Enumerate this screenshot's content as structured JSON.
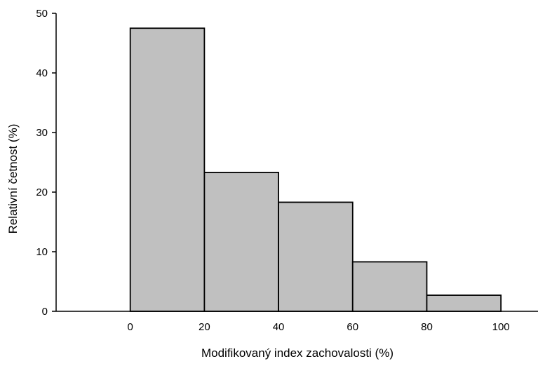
{
  "chart_data": {
    "type": "bar",
    "histogram": true,
    "title": "",
    "xlabel": "Modifikovaný index zachovalosti (%)",
    "ylabel": "Relativní četnost (%)",
    "bins": [
      {
        "x_start": 0,
        "x_end": 20,
        "value": 47.5
      },
      {
        "x_start": 20,
        "x_end": 40,
        "value": 23.3
      },
      {
        "x_start": 40,
        "x_end": 60,
        "value": 18.3
      },
      {
        "x_start": 60,
        "x_end": 80,
        "value": 8.3
      },
      {
        "x_start": 80,
        "x_end": 100,
        "value": 2.7
      }
    ],
    "xlim": [
      -20,
      110
    ],
    "ylim": [
      0,
      50
    ],
    "x_ticks": [
      0,
      20,
      40,
      60,
      80,
      100
    ],
    "y_ticks": [
      0,
      10,
      20,
      30,
      40,
      50
    ],
    "bar_color": "#c0c0c0",
    "bar_edge_color": "#000000",
    "grid": false,
    "legend": "none"
  }
}
